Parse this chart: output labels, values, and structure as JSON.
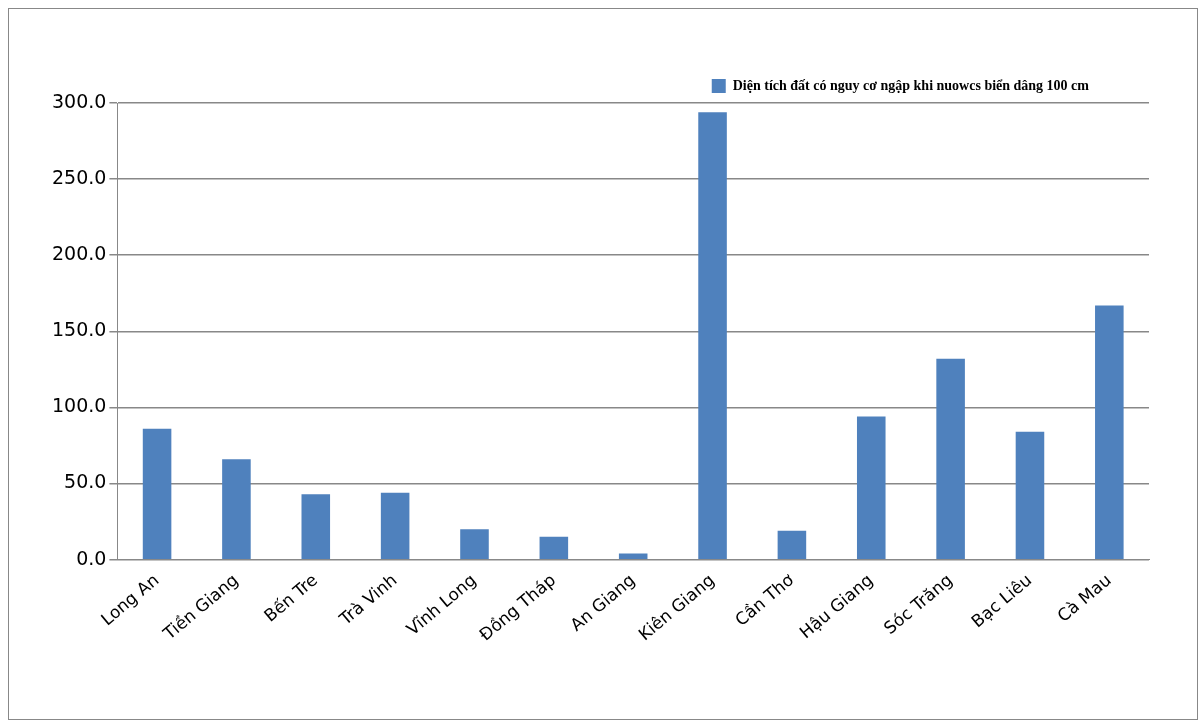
{
  "chart_data": {
    "type": "bar",
    "categories": [
      "Long An",
      "Tiền Giang",
      "Bến Tre",
      "Trà Vinh",
      "Vĩnh Long",
      "Đồng Tháp",
      "An Giang",
      "Kiên Giang",
      "Cần Thơ",
      "Hậu Giang",
      "Sóc Trăng",
      "Bạc Liêu",
      "Cà Mau"
    ],
    "series": [
      {
        "name": "Diện tích đất có nguy cơ ngập khi nuowcs biển dâng 100 cm",
        "color": "#4f81bd",
        "values": [
          86,
          66,
          43,
          44,
          20,
          15,
          4,
          294,
          19,
          94,
          132,
          84,
          167
        ]
      }
    ],
    "ylim": [
      0,
      300
    ],
    "yticks": [
      {
        "value": 0,
        "label": "0.0"
      },
      {
        "value": 50,
        "label": "50.0"
      },
      {
        "value": 100,
        "label": "100.0"
      },
      {
        "value": 150,
        "label": "150.0"
      },
      {
        "value": 200,
        "label": "200.0"
      },
      {
        "value": 250,
        "label": "250.0"
      },
      {
        "value": 300,
        "label": "300.0"
      }
    ],
    "grid": "y",
    "legend": "top right"
  }
}
